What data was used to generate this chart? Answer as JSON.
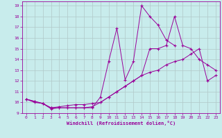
{
  "xlabel": "Windchill (Refroidissement éolien,°C)",
  "bg_color": "#c8ecec",
  "line_color": "#990099",
  "grid_color": "#b0c8c8",
  "xlim": [
    -0.5,
    23.5
  ],
  "ylim": [
    9,
    19.4
  ],
  "xticks": [
    0,
    1,
    2,
    3,
    4,
    5,
    6,
    7,
    8,
    9,
    10,
    11,
    12,
    13,
    14,
    15,
    16,
    17,
    18,
    19,
    20,
    21,
    22,
    23
  ],
  "yticks": [
    9,
    10,
    11,
    12,
    13,
    14,
    15,
    16,
    17,
    18,
    19
  ],
  "line1_x": [
    0,
    1,
    2,
    3,
    4,
    5,
    6,
    7,
    8,
    9,
    10,
    11,
    12,
    13,
    14,
    15,
    16,
    17,
    18,
    19,
    20,
    21,
    22,
    23
  ],
  "line1_y": [
    10.3,
    10.0,
    9.9,
    9.4,
    9.5,
    9.5,
    9.5,
    9.5,
    9.5,
    10.5,
    13.8,
    16.9,
    12.1,
    13.8,
    19.0,
    18.0,
    17.2,
    15.8,
    15.3,
    null,
    null,
    null,
    null,
    null
  ],
  "line2_x": [
    0,
    1,
    2,
    3,
    4,
    5,
    6,
    7,
    8,
    9,
    10,
    11,
    12,
    13,
    14,
    15,
    16,
    17,
    18,
    19,
    20,
    21,
    22,
    23
  ],
  "line2_y": [
    10.3,
    10.1,
    9.9,
    9.5,
    9.5,
    9.5,
    9.5,
    9.5,
    9.6,
    10.0,
    10.5,
    11.0,
    11.5,
    12.0,
    12.5,
    15.0,
    15.0,
    15.3,
    18.0,
    15.3,
    15.0,
    14.0,
    13.5,
    13.0
  ],
  "line3_x": [
    0,
    1,
    2,
    3,
    4,
    5,
    6,
    7,
    8,
    9,
    10,
    11,
    12,
    13,
    14,
    15,
    16,
    17,
    18,
    19,
    20,
    21,
    22,
    23
  ],
  "line3_y": [
    10.3,
    10.1,
    9.9,
    9.5,
    9.6,
    9.7,
    9.8,
    9.8,
    9.9,
    10.0,
    10.5,
    11.0,
    11.5,
    12.0,
    12.5,
    12.8,
    13.0,
    13.5,
    13.8,
    14.0,
    14.5,
    15.0,
    12.0,
    12.5
  ]
}
